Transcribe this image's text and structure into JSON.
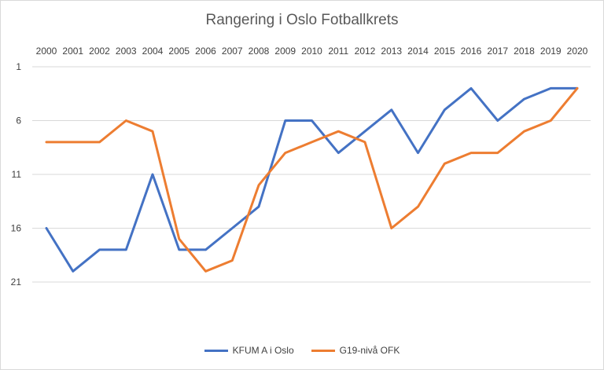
{
  "chart_data": {
    "type": "line",
    "title": "Rangering i Oslo Fotballkrets",
    "categories": [
      "2000",
      "2001",
      "2002",
      "2003",
      "2004",
      "2005",
      "2006",
      "2007",
      "2008",
      "2009",
      "2010",
      "2011",
      "2012",
      "2013",
      "2014",
      "2015",
      "2016",
      "2017",
      "2018",
      "2019",
      "2020"
    ],
    "y_ticks": [
      "1",
      "6",
      "11",
      "16",
      "21"
    ],
    "ylim": [
      1,
      21
    ],
    "y_reversed": true,
    "grid": true,
    "legend_position": "bottom",
    "series": [
      {
        "name": "KFUM A i Oslo",
        "color": "#4472c4",
        "values": [
          16,
          20,
          18,
          18,
          11,
          18,
          18,
          16,
          14,
          6,
          6,
          9,
          7,
          5,
          9,
          5,
          3,
          6,
          4,
          3,
          3
        ]
      },
      {
        "name": "G19-nivå OFK",
        "color": "#ed7d31",
        "values": [
          8,
          8,
          8,
          6,
          7,
          17,
          20,
          19,
          12,
          9,
          8,
          7,
          8,
          16,
          14,
          10,
          9,
          9,
          7,
          6,
          3
        ]
      }
    ]
  }
}
